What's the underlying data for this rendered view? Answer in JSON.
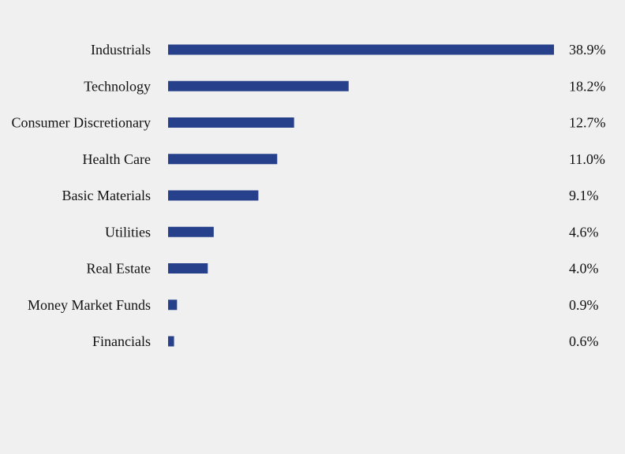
{
  "chart_data": {
    "type": "bar",
    "orientation": "horizontal",
    "categories": [
      "Industrials",
      "Technology",
      "Consumer Discretionary",
      "Health Care",
      "Basic Materials",
      "Utilities",
      "Real Estate",
      "Money Market Funds",
      "Financials"
    ],
    "values": [
      38.9,
      18.2,
      12.7,
      11.0,
      9.1,
      4.6,
      4.0,
      0.9,
      0.6
    ],
    "value_labels": [
      "38.9%",
      "18.2%",
      "12.7%",
      "11.0%",
      "9.1%",
      "4.6%",
      "4.0%",
      "0.9%",
      "0.6%"
    ],
    "xlim": [
      0,
      38.9
    ],
    "grid": false,
    "legend": "none",
    "bar_color": "#26408b",
    "background_color": "#f0f0f0"
  }
}
